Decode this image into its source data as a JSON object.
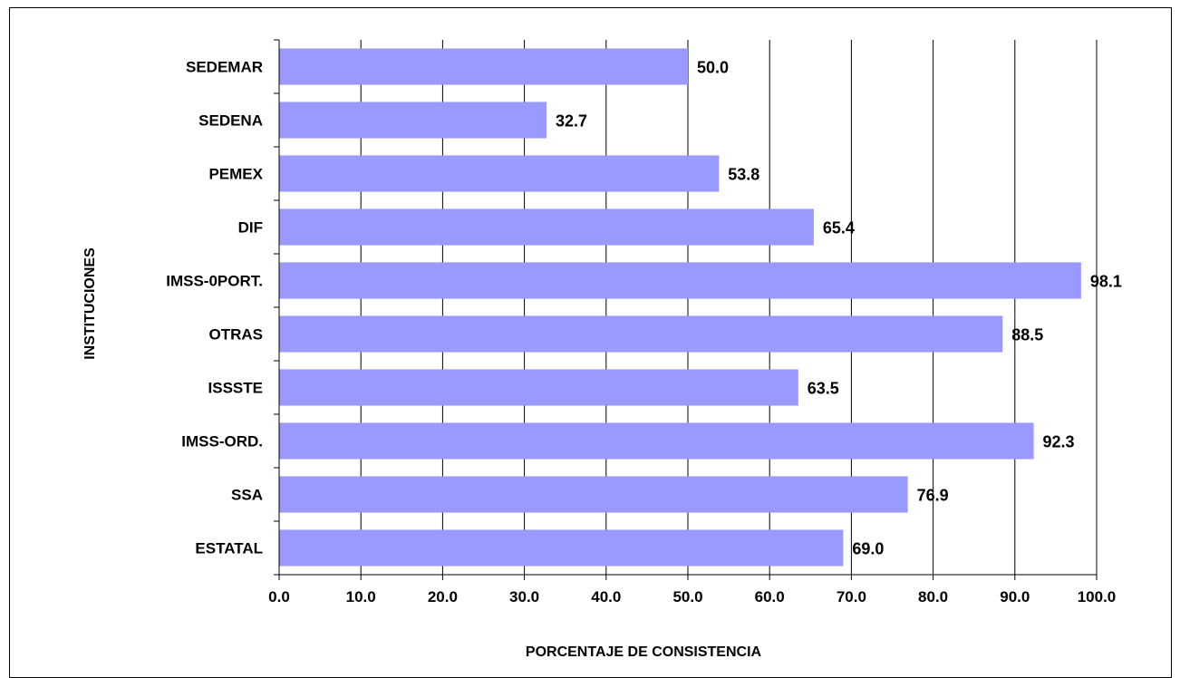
{
  "chart_data": {
    "type": "bar",
    "orientation": "horizontal",
    "title": "",
    "xlabel": "PORCENTAJE DE CONSISTENCIA",
    "ylabel": "INSTITUCIONES",
    "categories": [
      "SEDEMAR",
      "SEDENA",
      "PEMEX",
      "DIF",
      "IMSS-0PORT.",
      "OTRAS",
      "ISSSTE",
      "IMSS-ORD.",
      "SSA",
      "ESTATAL"
    ],
    "values": [
      50.0,
      32.7,
      53.8,
      65.4,
      98.1,
      88.5,
      63.5,
      92.3,
      76.9,
      69.0
    ],
    "value_labels": [
      "50.0",
      "32.7",
      "53.8",
      "65.4",
      "98.1",
      "88.5",
      "63.5",
      "92.3",
      "76.9",
      "69.0"
    ],
    "xlim": [
      0,
      100
    ],
    "xticks": [
      "0.0",
      "10.0",
      "20.0",
      "30.0",
      "40.0",
      "50.0",
      "60.0",
      "70.0",
      "80.0",
      "90.0",
      "100.0"
    ],
    "grid": "vertical",
    "legend": "none",
    "bar_color": "#9999ff"
  }
}
